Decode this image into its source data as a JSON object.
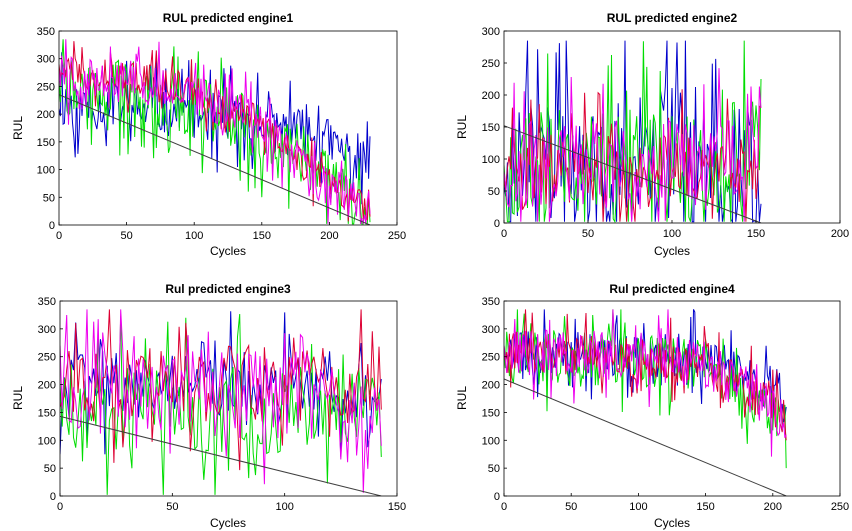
{
  "chart_data": [
    {
      "type": "line",
      "title": "RUL predicted engine1",
      "xlabel": "Cycles",
      "ylabel": "RUL",
      "xlim": [
        0,
        250
      ],
      "ylim": [
        0,
        350
      ],
      "xticks": [
        "0",
        "50",
        "100",
        "150",
        "200",
        "250"
      ],
      "yticks": [
        "0",
        "50",
        "100",
        "150",
        "200",
        "250",
        "300",
        "350"
      ],
      "grid": false,
      "n_cycles": 230,
      "true_rul": {
        "x": [
          0,
          230
        ],
        "y": [
          235,
          0
        ],
        "color": "#404040"
      },
      "series": [
        {
          "color": "#0000cc",
          "start": [
            0,
            210
          ],
          "end": [
            230,
            160
          ],
          "mid": [
            [
              0,
              220
            ],
            [
              100,
              200
            ],
            [
              150,
              180
            ],
            [
              190,
              160
            ],
            [
              230,
              110
            ]
          ],
          "spread": 45,
          "seed": 11
        },
        {
          "color": "#00dd00",
          "start": [
            0,
            260
          ],
          "end": [
            230,
            5
          ],
          "mid": [
            [
              0,
              250
            ],
            [
              60,
              240
            ],
            [
              120,
              200
            ],
            [
              170,
              150
            ],
            [
              230,
              10
            ]
          ],
          "spread": 55,
          "seed": 22
        },
        {
          "color": "#dd0033",
          "start": [
            0,
            290
          ],
          "end": [
            230,
            15
          ],
          "mid": [
            [
              0,
              280
            ],
            [
              80,
              260
            ],
            [
              140,
              200
            ],
            [
              190,
              90
            ],
            [
              230,
              20
            ]
          ],
          "spread": 30,
          "seed": 33
        },
        {
          "color": "#ee00ee",
          "start": [
            0,
            280
          ],
          "end": [
            230,
            20
          ],
          "mid": [
            [
              0,
              270
            ],
            [
              80,
              250
            ],
            [
              140,
              200
            ],
            [
              190,
              80
            ],
            [
              230,
              25
            ]
          ],
          "spread": 40,
          "seed": 44
        }
      ]
    },
    {
      "type": "line",
      "title": "RUL predicted engine2",
      "xlabel": "Cycles",
      "ylabel": "RUL",
      "xlim": [
        0,
        200
      ],
      "ylim": [
        0,
        300
      ],
      "xticks": [
        "0",
        "50",
        "100",
        "150",
        "200"
      ],
      "yticks": [
        "0",
        "50",
        "100",
        "150",
        "200",
        "250",
        "300"
      ],
      "grid": false,
      "n_cycles": 153,
      "true_rul": {
        "x": [
          0,
          153
        ],
        "y": [
          152,
          0
        ],
        "color": "#404040"
      },
      "series": [
        {
          "color": "#0000cc",
          "start": [
            0,
            60
          ],
          "end": [
            153,
            30
          ],
          "mid": [
            [
              0,
              100
            ],
            [
              153,
              90
            ]
          ],
          "spread": 120,
          "seed": 55
        },
        {
          "color": "#00dd00",
          "start": [
            0,
            90
          ],
          "end": [
            153,
            225
          ],
          "mid": [
            [
              0,
              90
            ],
            [
              153,
              100
            ]
          ],
          "spread": 90,
          "seed": 66
        },
        {
          "color": "#dd0033",
          "start": [
            0,
            70
          ],
          "end": [
            153,
            180
          ],
          "mid": [
            [
              0,
              80
            ],
            [
              153,
              80
            ]
          ],
          "spread": 60,
          "seed": 77
        },
        {
          "color": "#ee00ee",
          "start": [
            0,
            80
          ],
          "end": [
            153,
            180
          ],
          "mid": [
            [
              0,
              90
            ],
            [
              153,
              90
            ]
          ],
          "spread": 70,
          "seed": 88
        }
      ]
    },
    {
      "type": "line",
      "title": "Rul predicted engine3",
      "xlabel": "Cycles",
      "ylabel": "RUL",
      "xlim": [
        0,
        150
      ],
      "ylim": [
        0,
        350
      ],
      "xticks": [
        "0",
        "50",
        "100",
        "150"
      ],
      "yticks": [
        "0",
        "50",
        "100",
        "150",
        "200",
        "250",
        "300",
        "350"
      ],
      "grid": false,
      "n_cycles": 143,
      "true_rul": {
        "x": [
          0,
          143
        ],
        "y": [
          143,
          0
        ],
        "color": "#404040"
      },
      "series": [
        {
          "color": "#0000cc",
          "start": [
            0,
            75
          ],
          "end": [
            143,
            210
          ],
          "mid": [
            [
              0,
              200
            ],
            [
              143,
              200
            ]
          ],
          "spread": 60,
          "seed": 99
        },
        {
          "color": "#00dd00",
          "start": [
            0,
            200
          ],
          "end": [
            143,
            70
          ],
          "mid": [
            [
              0,
              160
            ],
            [
              143,
              150
            ]
          ],
          "spread": 80,
          "seed": 111
        },
        {
          "color": "#dd0033",
          "start": [
            0,
            160
          ],
          "end": [
            143,
            155
          ],
          "mid": [
            [
              0,
              200
            ],
            [
              143,
              200
            ]
          ],
          "spread": 70,
          "seed": 122
        },
        {
          "color": "#ee00ee",
          "start": [
            0,
            270
          ],
          "end": [
            143,
            90
          ],
          "mid": [
            [
              0,
              190
            ],
            [
              143,
              180
            ]
          ],
          "spread": 80,
          "seed": 133
        }
      ]
    },
    {
      "type": "line",
      "title": "Rul predicted engine4",
      "xlabel": "Cycles",
      "ylabel": "RUL",
      "xlim": [
        0,
        250
      ],
      "ylim": [
        0,
        350
      ],
      "xticks": [
        "0",
        "50",
        "100",
        "150",
        "200",
        "250"
      ],
      "yticks": [
        "0",
        "50",
        "100",
        "150",
        "200",
        "250",
        "300",
        "350"
      ],
      "grid": false,
      "n_cycles": 210,
      "true_rul": {
        "x": [
          0,
          210
        ],
        "y": [
          210,
          0
        ],
        "color": "#404040"
      },
      "series": [
        {
          "color": "#0000cc",
          "start": [
            0,
            250
          ],
          "end": [
            210,
            160
          ],
          "mid": [
            [
              0,
              260
            ],
            [
              150,
              250
            ],
            [
              210,
              180
            ]
          ],
          "spread": 40,
          "seed": 144
        },
        {
          "color": "#00dd00",
          "start": [
            0,
            260
          ],
          "end": [
            210,
            50
          ],
          "mid": [
            [
              0,
              250
            ],
            [
              150,
              240
            ],
            [
              210,
              130
            ]
          ],
          "spread": 50,
          "seed": 155
        },
        {
          "color": "#dd0033",
          "start": [
            0,
            270
          ],
          "end": [
            210,
            100
          ],
          "mid": [
            [
              0,
              260
            ],
            [
              150,
              240
            ],
            [
              210,
              150
            ]
          ],
          "spread": 40,
          "seed": 166
        },
        {
          "color": "#ee00ee",
          "start": [
            0,
            270
          ],
          "end": [
            210,
            110
          ],
          "mid": [
            [
              0,
              265
            ],
            [
              150,
              240
            ],
            [
              210,
              140
            ]
          ],
          "spread": 45,
          "seed": 177
        }
      ]
    }
  ]
}
